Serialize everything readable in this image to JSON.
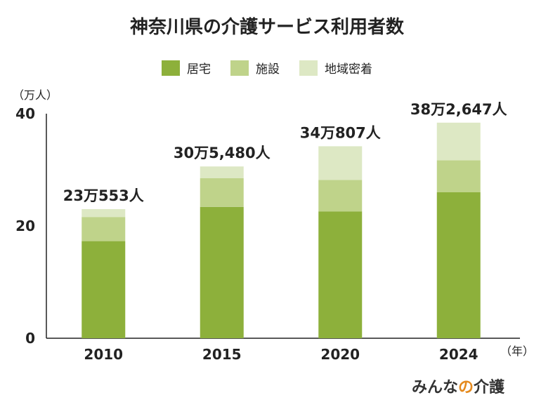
{
  "chart_data": {
    "type": "bar",
    "stacked": true,
    "title": "神奈川県の介護サービス利用者数",
    "ylabel": "（万人）",
    "xlabel": "（年）",
    "ylim": [
      0,
      40
    ],
    "yticks": [
      0,
      20,
      40
    ],
    "categories": [
      "2010",
      "2015",
      "2020",
      "2024"
    ],
    "series": [
      {
        "name": "居宅",
        "color": "#8db03b",
        "values": [
          17.3,
          23.4,
          22.6,
          26.0
        ]
      },
      {
        "name": "施設",
        "color": "#bfd38a",
        "values": [
          4.3,
          5.1,
          5.6,
          5.7
        ]
      },
      {
        "name": "地域密着",
        "color": "#dde8c4",
        "values": [
          1.4,
          2.1,
          6.0,
          6.7
        ]
      }
    ],
    "totals": [
      "23万553人",
      "30万5,480人",
      "34万807人",
      "38万2,647人"
    ],
    "legend_position": "top-center"
  },
  "brand": {
    "prefix": "みんな",
    "middle": "の",
    "suffix": "介護"
  }
}
